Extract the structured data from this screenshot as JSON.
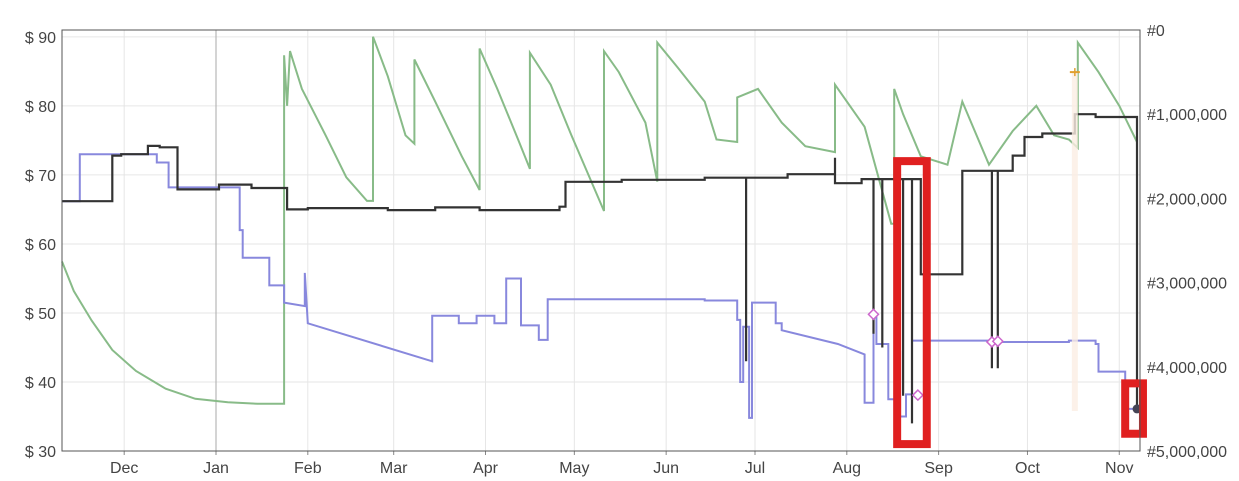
{
  "chart_data": {
    "type": "line",
    "title": "",
    "xlabel": "",
    "ylabel": "",
    "x_tick_labels": [
      "Dec",
      "Jan",
      "Feb",
      "Mar",
      "Apr",
      "May",
      "Jun",
      "Jul",
      "Aug",
      "Sep",
      "Oct",
      "Nov"
    ],
    "x_tick_dates": [
      "2023-12-01",
      "2024-01-01",
      "2024-02-01",
      "2024-03-01",
      "2024-04-01",
      "2024-05-01",
      "2024-06-01",
      "2024-07-01",
      "2024-08-01",
      "2024-09-01",
      "2024-10-01",
      "2024-11-01"
    ],
    "xlim": [
      "2023-11-10",
      "2024-11-08"
    ],
    "y_left_ticks": [
      30,
      40,
      50,
      60,
      70,
      80,
      90
    ],
    "y_left_tick_labels": [
      "$ 30",
      "$ 40",
      "$ 50",
      "$ 60",
      "$ 70",
      "$ 80",
      "$ 90"
    ],
    "ylim_left": [
      30,
      91
    ],
    "y_right_ticks": [
      0,
      1000000,
      2000000,
      3000000,
      4000000,
      5000000
    ],
    "y_right_tick_labels": [
      "#0",
      "#1,000,000",
      "#2,000,000",
      "#3,000,000",
      "#4,000,000",
      "#5,000,000"
    ],
    "ylim_right": [
      5000000,
      0
    ],
    "grid": true,
    "colors": {
      "series_black": "#333333",
      "series_blue": "#8888dd",
      "series_green": "#88bb88",
      "highlight_boxes": "#e02020",
      "marker_diamond": "#cc66cc",
      "marker_orange": "#e0a030",
      "grid": "#e6e6e6"
    },
    "series": [
      {
        "axis": "left",
        "color": "black",
        "points": [
          [
            "2023-11-10",
            66.2
          ],
          [
            "2023-11-27",
            66.2
          ],
          [
            "2023-11-27",
            72.8
          ],
          [
            "2023-11-30",
            72.8
          ],
          [
            "2023-11-30",
            73.0
          ],
          [
            "2023-12-09",
            73.0
          ],
          [
            "2023-12-09",
            74.2
          ],
          [
            "2023-12-13",
            74.2
          ],
          [
            "2023-12-13",
            74.0
          ],
          [
            "2023-12-19",
            74.0
          ],
          [
            "2023-12-19",
            67.9
          ],
          [
            "2024-01-02",
            67.9
          ],
          [
            "2024-01-02",
            68.6
          ],
          [
            "2024-01-13",
            68.6
          ],
          [
            "2024-01-13",
            68.1
          ],
          [
            "2024-01-25",
            68.1
          ],
          [
            "2024-01-25",
            65.0
          ],
          [
            "2024-02-01",
            65.0
          ],
          [
            "2024-02-01",
            65.2
          ],
          [
            "2024-02-28",
            65.2
          ],
          [
            "2024-02-28",
            64.9
          ],
          [
            "2024-03-15",
            64.9
          ],
          [
            "2024-03-15",
            65.3
          ],
          [
            "2024-03-30",
            65.3
          ],
          [
            "2024-03-30",
            64.9
          ],
          [
            "2024-04-26",
            64.9
          ],
          [
            "2024-04-26",
            65.4
          ],
          [
            "2024-04-28",
            65.4
          ],
          [
            "2024-04-28",
            69.0
          ],
          [
            "2024-05-17",
            69.0
          ],
          [
            "2024-05-17",
            69.3
          ],
          [
            "2024-06-14",
            69.3
          ],
          [
            "2024-06-14",
            69.6
          ],
          [
            "2024-06-28",
            69.6
          ],
          [
            "2024-06-28",
            43.0
          ],
          [
            "2024-06-28",
            69.6
          ],
          [
            "2024-07-12",
            69.6
          ],
          [
            "2024-07-12",
            70.1
          ],
          [
            "2024-07-28",
            70.1
          ],
          [
            "2024-07-28",
            72.5
          ],
          [
            "2024-07-28",
            68.8
          ],
          [
            "2024-08-06",
            68.8
          ],
          [
            "2024-08-06",
            69.4
          ],
          [
            "2024-08-10",
            69.4
          ],
          [
            "2024-08-10",
            47.0
          ],
          [
            "2024-08-10",
            69.4
          ],
          [
            "2024-08-13",
            69.4
          ],
          [
            "2024-08-13",
            45.0
          ],
          [
            "2024-08-13",
            69.4
          ],
          [
            "2024-08-20",
            69.4
          ],
          [
            "2024-08-20",
            38.0
          ],
          [
            "2024-08-20",
            69.4
          ],
          [
            "2024-08-23",
            69.4
          ],
          [
            "2024-08-23",
            34.0
          ],
          [
            "2024-08-23",
            69.4
          ],
          [
            "2024-08-26",
            69.4
          ],
          [
            "2024-08-26",
            55.6
          ],
          [
            "2024-09-09",
            55.6
          ],
          [
            "2024-09-09",
            70.6
          ],
          [
            "2024-09-19",
            70.6
          ],
          [
            "2024-09-19",
            42.0
          ],
          [
            "2024-09-19",
            70.6
          ],
          [
            "2024-09-21",
            70.6
          ],
          [
            "2024-09-21",
            42.0
          ],
          [
            "2024-09-21",
            70.6
          ],
          [
            "2024-09-26",
            70.6
          ],
          [
            "2024-09-26",
            72.8
          ],
          [
            "2024-09-30",
            72.8
          ],
          [
            "2024-09-30",
            75.5
          ],
          [
            "2024-10-06",
            75.5
          ],
          [
            "2024-10-06",
            76.0
          ],
          [
            "2024-10-17",
            76.0
          ],
          [
            "2024-10-17",
            78.8
          ],
          [
            "2024-10-24",
            78.8
          ],
          [
            "2024-10-24",
            78.4
          ],
          [
            "2024-11-07",
            78.4
          ],
          [
            "2024-11-07",
            36.1
          ]
        ]
      },
      {
        "axis": "left",
        "color": "blue",
        "points": [
          [
            "2023-11-10",
            66.2
          ],
          [
            "2023-11-16",
            66.2
          ],
          [
            "2023-11-16",
            73.0
          ],
          [
            "2023-11-27",
            73.0
          ],
          [
            "2023-11-27",
            73.0
          ],
          [
            "2023-12-12",
            73.0
          ],
          [
            "2023-12-12",
            71.8
          ],
          [
            "2023-12-16",
            71.8
          ],
          [
            "2023-12-16",
            68.2
          ],
          [
            "2024-01-09",
            68.2
          ],
          [
            "2024-01-09",
            62.0
          ],
          [
            "2024-01-10",
            62.0
          ],
          [
            "2024-01-10",
            58.0
          ],
          [
            "2024-01-19",
            58.0
          ],
          [
            "2024-01-19",
            54.0
          ],
          [
            "2024-01-24",
            54.0
          ],
          [
            "2024-01-24",
            51.5
          ],
          [
            "2024-01-31",
            51.0
          ],
          [
            "2024-01-31",
            55.8
          ],
          [
            "2024-02-01",
            48.5
          ],
          [
            "2024-03-14",
            43.0
          ],
          [
            "2024-03-14",
            49.6
          ],
          [
            "2024-03-23",
            49.6
          ],
          [
            "2024-03-23",
            48.5
          ],
          [
            "2024-03-29",
            48.5
          ],
          [
            "2024-03-29",
            49.6
          ],
          [
            "2024-04-04",
            49.6
          ],
          [
            "2024-04-04",
            48.5
          ],
          [
            "2024-04-08",
            48.5
          ],
          [
            "2024-04-08",
            55.0
          ],
          [
            "2024-04-13",
            55.0
          ],
          [
            "2024-04-13",
            48.2
          ],
          [
            "2024-04-19",
            48.2
          ],
          [
            "2024-04-19",
            46.1
          ],
          [
            "2024-04-22",
            46.1
          ],
          [
            "2024-04-22",
            52.0
          ],
          [
            "2024-06-14",
            52.0
          ],
          [
            "2024-06-14",
            51.8
          ],
          [
            "2024-06-25",
            51.8
          ],
          [
            "2024-06-25",
            49.0
          ],
          [
            "2024-06-26",
            49.0
          ],
          [
            "2024-06-26",
            40.0
          ],
          [
            "2024-06-27",
            40.0
          ],
          [
            "2024-06-27",
            48.0
          ],
          [
            "2024-06-29",
            48.0
          ],
          [
            "2024-06-29",
            34.8
          ],
          [
            "2024-06-30",
            34.8
          ],
          [
            "2024-06-30",
            51.5
          ],
          [
            "2024-07-08",
            51.5
          ],
          [
            "2024-07-08",
            48.5
          ],
          [
            "2024-07-10",
            48.5
          ],
          [
            "2024-07-10",
            47.5
          ],
          [
            "2024-07-29",
            45.5
          ],
          [
            "2024-08-07",
            44.0
          ],
          [
            "2024-08-07",
            37.0
          ],
          [
            "2024-08-10",
            37.0
          ],
          [
            "2024-08-10",
            49.8
          ],
          [
            "2024-08-11",
            49.8
          ],
          [
            "2024-08-11",
            45.5
          ],
          [
            "2024-08-15",
            45.5
          ],
          [
            "2024-08-15",
            37.5
          ],
          [
            "2024-08-18",
            37.5
          ],
          [
            "2024-08-18",
            44.4
          ],
          [
            "2024-08-19",
            44.4
          ],
          [
            "2024-08-19",
            35.0
          ],
          [
            "2024-08-21",
            35.0
          ],
          [
            "2024-08-21",
            38.2
          ],
          [
            "2024-08-23",
            38.2
          ],
          [
            "2024-08-23",
            46.0
          ],
          [
            "2024-09-18",
            46.0
          ],
          [
            "2024-09-18",
            45.8
          ],
          [
            "2024-10-15",
            45.8
          ],
          [
            "2024-10-15",
            46.0
          ],
          [
            "2024-10-24",
            46.0
          ],
          [
            "2024-10-24",
            45.5
          ],
          [
            "2024-10-25",
            45.5
          ],
          [
            "2024-10-25",
            41.5
          ],
          [
            "2024-11-03",
            41.5
          ],
          [
            "2024-11-03",
            36.1
          ],
          [
            "2024-11-07",
            36.1
          ]
        ]
      },
      {
        "axis": "right",
        "color": "green",
        "points": [
          [
            "2023-11-10",
            2750000
          ],
          [
            "2023-11-14",
            3100000
          ],
          [
            "2023-11-20",
            3450000
          ],
          [
            "2023-11-27",
            3800000
          ],
          [
            "2023-12-05",
            4050000
          ],
          [
            "2023-12-15",
            4260000
          ],
          [
            "2023-12-25",
            4380000
          ],
          [
            "2024-01-05",
            4420000
          ],
          [
            "2024-01-15",
            4440000
          ],
          [
            "2024-01-24",
            4440000
          ],
          [
            "2024-01-24",
            300000
          ],
          [
            "2024-01-25",
            900000
          ],
          [
            "2024-01-26",
            250000
          ],
          [
            "2024-01-30",
            700000
          ],
          [
            "2024-02-07",
            1250000
          ],
          [
            "2024-02-14",
            1750000
          ],
          [
            "2024-02-21",
            2030000
          ],
          [
            "2024-02-23",
            2030000
          ],
          [
            "2024-02-23",
            80000
          ],
          [
            "2024-02-28",
            550000
          ],
          [
            "2024-03-05",
            1250000
          ],
          [
            "2024-03-08",
            1350000
          ],
          [
            "2024-03-08",
            350000
          ],
          [
            "2024-03-15",
            850000
          ],
          [
            "2024-03-24",
            1500000
          ],
          [
            "2024-03-30",
            1900000
          ],
          [
            "2024-03-30",
            220000
          ],
          [
            "2024-04-05",
            700000
          ],
          [
            "2024-04-12",
            1300000
          ],
          [
            "2024-04-16",
            1650000
          ],
          [
            "2024-04-16",
            270000
          ],
          [
            "2024-04-23",
            650000
          ],
          [
            "2024-04-30",
            1250000
          ],
          [
            "2024-05-11",
            2150000
          ],
          [
            "2024-05-11",
            250000
          ],
          [
            "2024-05-16",
            500000
          ],
          [
            "2024-05-25",
            1100000
          ],
          [
            "2024-05-29",
            1800000
          ],
          [
            "2024-05-29",
            150000
          ],
          [
            "2024-06-05",
            450000
          ],
          [
            "2024-06-14",
            850000
          ],
          [
            "2024-06-18",
            1300000
          ],
          [
            "2024-06-25",
            1330000
          ],
          [
            "2024-06-25",
            800000
          ],
          [
            "2024-07-02",
            700000
          ],
          [
            "2024-07-10",
            1100000
          ],
          [
            "2024-07-18",
            1380000
          ],
          [
            "2024-07-28",
            1450000
          ],
          [
            "2024-07-28",
            650000
          ],
          [
            "2024-08-07",
            1150000
          ],
          [
            "2024-08-16",
            2300000
          ],
          [
            "2024-08-17",
            2300000
          ],
          [
            "2024-08-17",
            700000
          ],
          [
            "2024-08-20",
            1000000
          ],
          [
            "2024-08-26",
            1500000
          ],
          [
            "2024-09-04",
            1600000
          ],
          [
            "2024-09-09",
            850000
          ],
          [
            "2024-09-18",
            1600000
          ],
          [
            "2024-09-26",
            1200000
          ],
          [
            "2024-10-04",
            900000
          ],
          [
            "2024-10-10",
            1250000
          ],
          [
            "2024-10-15",
            1300000
          ],
          [
            "2024-10-18",
            1400000
          ],
          [
            "2024-10-18",
            150000
          ],
          [
            "2024-10-25",
            500000
          ],
          [
            "2024-11-01",
            900000
          ],
          [
            "2024-11-07",
            1330000
          ]
        ]
      }
    ],
    "diamond_markers": [
      {
        "date": "2024-08-10",
        "value": 49.8
      },
      {
        "date": "2024-08-25",
        "value": 38.1
      },
      {
        "date": "2024-09-19",
        "value": 45.8
      },
      {
        "date": "2024-09-21",
        "value": 45.9
      }
    ],
    "orange_marker": {
      "date": "2024-10-17",
      "value": 500000
    },
    "end_point": {
      "date": "2024-11-07",
      "value": 36.1
    },
    "highlight_ranges": [
      {
        "x_from": "2024-08-18",
        "x_to": "2024-08-28",
        "y_from": 31.0,
        "y_to": 72.0
      },
      {
        "x_from": "2024-11-03",
        "x_to": "2024-11-09",
        "y_from": 32.5,
        "y_to": 39.8
      }
    ]
  }
}
